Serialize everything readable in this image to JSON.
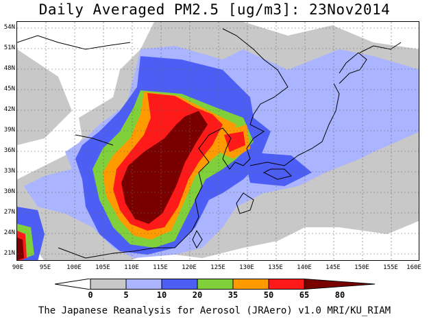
{
  "title": "Daily Averaged PM2.5 [ug/m3]: 23Nov2014",
  "lat_labels": [
    "54N",
    "51N",
    "48N",
    "45N",
    "42N",
    "39N",
    "36N",
    "33N",
    "30N",
    "27N",
    "24N",
    "21N"
  ],
  "lon_labels": [
    "90E",
    "95E",
    "100E",
    "105E",
    "110E",
    "115E",
    "120E",
    "125E",
    "130E",
    "135E",
    "140E",
    "145E",
    "150E",
    "155E",
    "160E"
  ],
  "colorbar": {
    "labels": [
      "0",
      "5",
      "10",
      "20",
      "35",
      "50",
      "65",
      "80"
    ],
    "colors": [
      "#ffffff",
      "#c8c8c8",
      "#aab4ff",
      "#4d5ef5",
      "#80d03c",
      "#ff9a00",
      "#ff1a1a",
      "#7a0000"
    ]
  },
  "credit": "The Japanese Reanalysis for Aerosol (JRAero) v1.0 MRI/KU_RIAM"
}
